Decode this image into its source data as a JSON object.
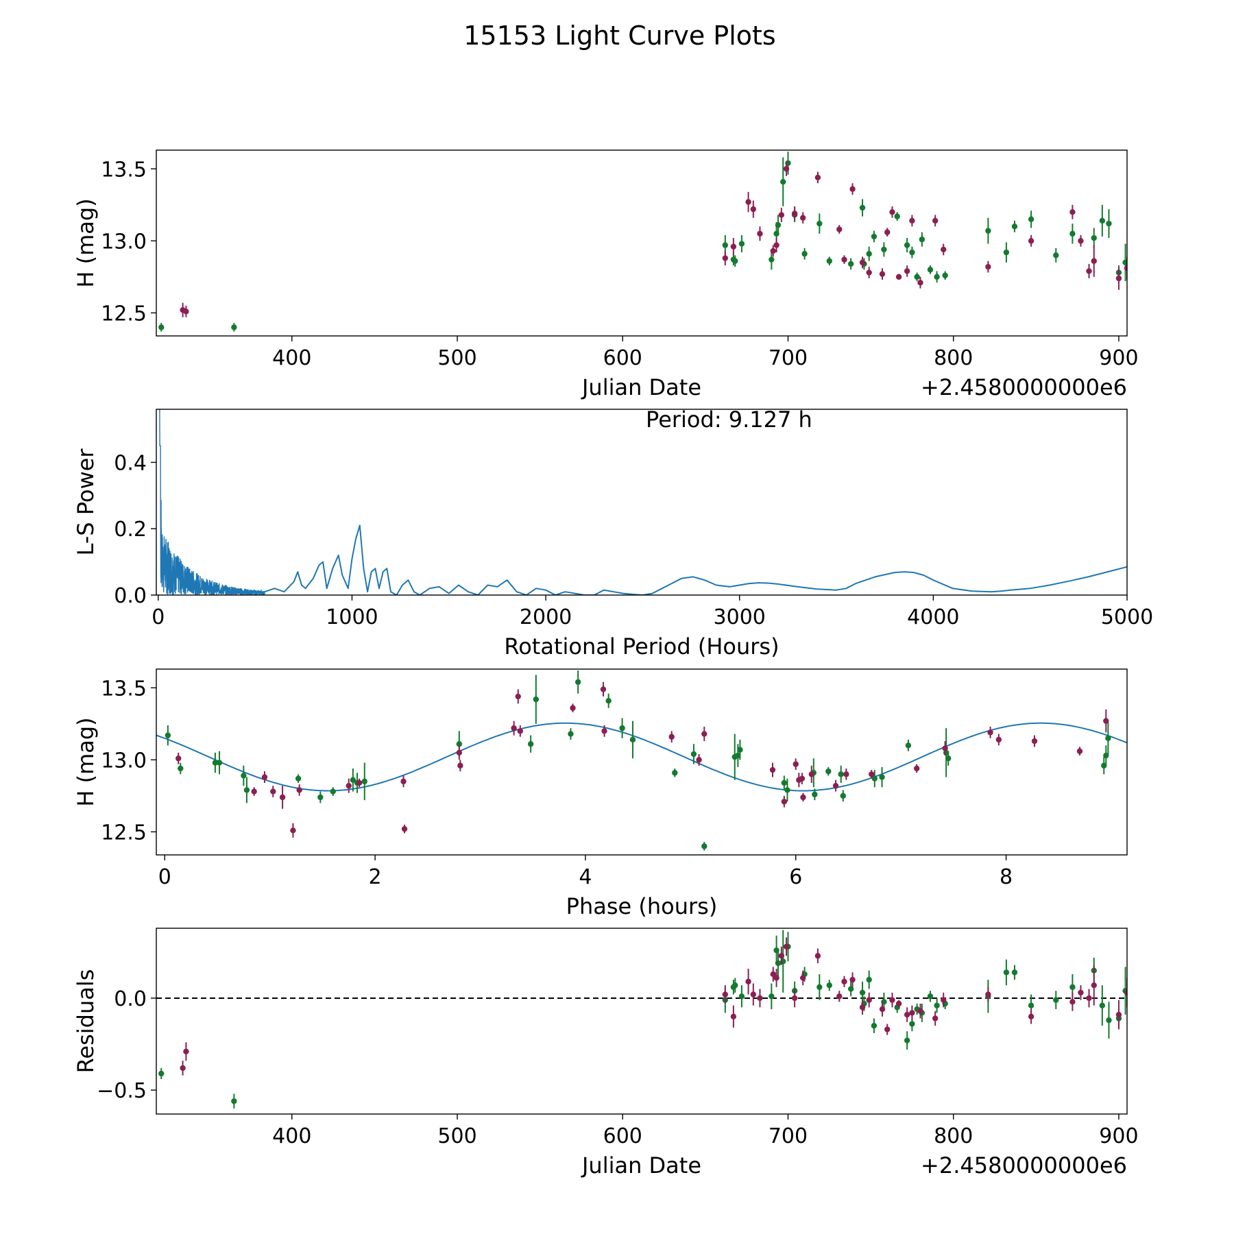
{
  "figure": {
    "title": "15153 Light Curve Plots"
  },
  "colors": {
    "green": "#137a2f",
    "purple": "#8b1f52",
    "line": "#1f77b4",
    "text": "#000000"
  },
  "chart_data": [
    {
      "id": "lightcurve",
      "type": "scatter",
      "title": "",
      "xlabel": "Julian Date",
      "ylabel": "H (mag)",
      "offset_label": "+2.4580000000e6",
      "xlim": [
        318,
        905
      ],
      "ylim": [
        12.34,
        13.63
      ],
      "xticks": [
        400,
        500,
        600,
        700,
        800,
        900
      ],
      "yticks": [
        12.5,
        13.0,
        13.5
      ],
      "ytick_labels": [
        "12.5",
        "13.0",
        "13.5"
      ],
      "series": [
        {
          "name": "green",
          "color": "#137a2f",
          "x": [
            321,
            365,
            662,
            667,
            668,
            672,
            690,
            693,
            694,
            697,
            700,
            704,
            710,
            719,
            725,
            738,
            745,
            746,
            749,
            752,
            758,
            766,
            772,
            775,
            778,
            781,
            786,
            790,
            795,
            821,
            832,
            837,
            847,
            862,
            872,
            885,
            890,
            894,
            900,
            904
          ],
          "y": [
            12.4,
            12.4,
            12.97,
            12.87,
            12.86,
            12.98,
            12.87,
            13.05,
            13.11,
            13.41,
            13.54,
            13.18,
            12.91,
            13.12,
            12.86,
            12.84,
            13.23,
            12.84,
            12.91,
            13.03,
            12.94,
            13.17,
            12.97,
            12.92,
            12.75,
            13.01,
            12.8,
            12.75,
            12.76,
            13.07,
            12.92,
            13.1,
            13.15,
            12.9,
            13.05,
            13.02,
            13.14,
            13.12,
            12.78,
            12.85
          ],
          "err": [
            0.03,
            0.03,
            0.07,
            0.04,
            0.04,
            0.06,
            0.07,
            0.08,
            0.07,
            0.17,
            0.08,
            0.05,
            0.04,
            0.07,
            0.03,
            0.04,
            0.06,
            0.04,
            0.05,
            0.04,
            0.05,
            0.03,
            0.05,
            0.04,
            0.03,
            0.05,
            0.03,
            0.04,
            0.03,
            0.09,
            0.07,
            0.04,
            0.06,
            0.05,
            0.07,
            0.07,
            0.11,
            0.1,
            0.05,
            0.13
          ]
        },
        {
          "name": "purple",
          "color": "#8b1f52",
          "x": [
            334,
            336,
            662,
            667,
            676,
            679,
            683,
            691,
            693,
            696,
            699,
            704,
            709,
            718,
            731,
            734,
            739,
            745,
            749,
            757,
            760,
            763,
            767,
            772,
            775,
            780,
            789,
            794,
            821,
            847,
            872,
            877,
            882,
            885,
            900,
            905
          ],
          "y": [
            12.52,
            12.51,
            12.88,
            12.96,
            13.27,
            13.22,
            13.05,
            12.93,
            12.97,
            13.18,
            13.5,
            13.19,
            13.16,
            13.44,
            13.08,
            12.87,
            13.36,
            12.85,
            12.78,
            12.77,
            13.06,
            13.2,
            12.75,
            12.79,
            13.14,
            12.71,
            13.14,
            12.94,
            12.82,
            13.0,
            13.2,
            13.0,
            12.79,
            12.86,
            12.74,
            12.81
          ],
          "err": [
            0.05,
            0.04,
            0.05,
            0.06,
            0.07,
            0.06,
            0.05,
            0.04,
            0.05,
            0.05,
            0.05,
            0.05,
            0.04,
            0.04,
            0.03,
            0.03,
            0.04,
            0.04,
            0.04,
            0.04,
            0.03,
            0.04,
            0.02,
            0.04,
            0.04,
            0.04,
            0.04,
            0.04,
            0.04,
            0.04,
            0.05,
            0.04,
            0.05,
            0.11,
            0.08,
            0.08
          ]
        }
      ]
    },
    {
      "id": "periodogram",
      "type": "line",
      "title": "",
      "annotation": "Period: 9.127 h",
      "xlabel": "Rotational Period (Hours)",
      "ylabel": "L-S Power",
      "xlim": [
        -10,
        5000
      ],
      "ylim": [
        0,
        0.56
      ],
      "xticks": [
        0,
        1000,
        2000,
        3000,
        4000,
        5000
      ],
      "yticks": [
        0.0,
        0.2,
        0.4
      ],
      "ytick_labels": [
        "0.0",
        "0.2",
        "0.4"
      ],
      "series": [
        {
          "name": "power",
          "color": "#1f77b4",
          "x": [
            550,
            600,
            650,
            700,
            720,
            740,
            760,
            800,
            830,
            850,
            870,
            900,
            930,
            950,
            980,
            1000,
            1020,
            1040,
            1060,
            1080,
            1100,
            1120,
            1140,
            1160,
            1180,
            1200,
            1230,
            1260,
            1290,
            1320,
            1350,
            1400,
            1450,
            1500,
            1550,
            1600,
            1650,
            1700,
            1750,
            1800,
            1850,
            1900,
            1950,
            2000,
            2050,
            2100,
            2150,
            2200,
            2250,
            2300,
            2350,
            2400,
            2450,
            2500,
            2550,
            2600,
            2650,
            2700,
            2760,
            2820,
            2880,
            2950,
            3000,
            3050,
            3100,
            3150,
            3200,
            3300,
            3400,
            3500,
            3550,
            3600,
            3700,
            3800,
            3850,
            3900,
            3950,
            4000,
            4100,
            4200,
            4300,
            4350,
            4400,
            4500,
            4600,
            4700,
            4800,
            4900,
            5000
          ],
          "y": [
            0.01,
            0.02,
            0.01,
            0.04,
            0.07,
            0.03,
            0.02,
            0.05,
            0.09,
            0.1,
            0.02,
            0.08,
            0.12,
            0.06,
            0.02,
            0.11,
            0.17,
            0.21,
            0.08,
            0.01,
            0.07,
            0.08,
            0.02,
            0.07,
            0.08,
            0.01,
            0.0,
            0.03,
            0.045,
            0.01,
            0.0,
            0.02,
            0.025,
            0.005,
            0.03,
            0.01,
            0.0,
            0.03,
            0.025,
            0.045,
            0.01,
            0.0,
            0.02,
            0.015,
            0.0,
            0.01,
            0.005,
            0.0,
            0.0,
            0.015,
            0.01,
            0.005,
            0.002,
            0.0,
            0.005,
            0.02,
            0.035,
            0.05,
            0.055,
            0.045,
            0.03,
            0.025,
            0.03,
            0.035,
            0.037,
            0.036,
            0.033,
            0.025,
            0.018,
            0.015,
            0.02,
            0.035,
            0.055,
            0.068,
            0.07,
            0.068,
            0.06,
            0.045,
            0.02,
            0.012,
            0.01,
            0.012,
            0.015,
            0.02,
            0.03,
            0.042,
            0.055,
            0.07,
            0.085
          ]
        }
      ]
    },
    {
      "id": "phase",
      "type": "scatter",
      "title": "",
      "xlabel": "Phase (hours)",
      "ylabel": "H (mag)",
      "xlim": [
        -0.08,
        9.15
      ],
      "ylim": [
        12.34,
        13.63
      ],
      "xticks": [
        0,
        2,
        4,
        6,
        8
      ],
      "yticks": [
        12.5,
        13.0,
        13.5
      ],
      "ytick_labels": [
        "12.5",
        "13.0",
        "13.5"
      ],
      "fit": {
        "mean": 13.02,
        "amplitude": 0.235,
        "period": 4.52,
        "phase_min": 1.55,
        "color": "#1f77b4"
      },
      "series": [
        {
          "name": "green",
          "color": "#137a2f",
          "x": [
            0.03,
            0.15,
            0.48,
            0.52,
            0.75,
            0.78,
            1.27,
            1.48,
            1.6,
            1.79,
            1.83,
            1.9,
            2.8,
            3.48,
            3.53,
            3.86,
            3.93,
            4.22,
            4.35,
            4.45,
            4.85,
            5.03,
            5.13,
            5.42,
            5.45,
            5.47,
            5.89,
            5.92,
            6.17,
            6.18,
            6.31,
            6.43,
            6.45,
            6.75,
            6.82,
            7.07,
            7.43,
            7.45,
            8.93,
            8.95,
            8.97
          ],
          "y": [
            13.17,
            12.94,
            12.98,
            12.98,
            12.89,
            12.79,
            12.87,
            12.74,
            12.78,
            12.86,
            12.84,
            12.85,
            13.11,
            13.11,
            13.42,
            13.18,
            13.54,
            13.41,
            13.22,
            13.14,
            12.91,
            13.04,
            12.4,
            13.02,
            13.03,
            13.07,
            12.84,
            12.79,
            12.91,
            12.76,
            12.92,
            12.9,
            12.75,
            12.87,
            12.88,
            13.1,
            13.05,
            13.01,
            12.96,
            13.03,
            13.15
          ],
          "err": [
            0.07,
            0.04,
            0.07,
            0.08,
            0.07,
            0.09,
            0.03,
            0.04,
            0.03,
            0.08,
            0.07,
            0.13,
            0.09,
            0.06,
            0.17,
            0.04,
            0.08,
            0.05,
            0.07,
            0.13,
            0.03,
            0.07,
            0.03,
            0.16,
            0.08,
            0.07,
            0.05,
            0.08,
            0.1,
            0.04,
            0.03,
            0.06,
            0.04,
            0.06,
            0.07,
            0.04,
            0.17,
            0.05,
            0.06,
            0.07,
            0.11
          ]
        },
        {
          "name": "purple",
          "color": "#8b1f52",
          "x": [
            0.13,
            0.85,
            0.95,
            1.03,
            1.12,
            1.22,
            1.28,
            1.75,
            1.85,
            2.27,
            2.28,
            2.8,
            2.81,
            3.32,
            3.36,
            3.38,
            3.88,
            4.17,
            4.18,
            4.82,
            5.08,
            5.13,
            5.78,
            5.89,
            6.0,
            6.03,
            6.06,
            6.07,
            6.15,
            6.38,
            6.48,
            6.72,
            7.15,
            7.42,
            7.85,
            7.93,
            8.27,
            8.7,
            8.95
          ],
          "y": [
            13.01,
            12.78,
            12.88,
            12.78,
            12.74,
            12.51,
            12.79,
            12.82,
            12.84,
            12.85,
            12.52,
            13.05,
            12.96,
            13.22,
            13.44,
            13.2,
            13.36,
            13.49,
            13.2,
            13.16,
            13.0,
            13.18,
            12.93,
            12.71,
            12.97,
            12.86,
            12.87,
            12.74,
            12.9,
            12.82,
            12.9,
            12.9,
            12.94,
            13.08,
            13.19,
            13.14,
            13.13,
            13.06,
            13.27
          ],
          "err": [
            0.04,
            0.03,
            0.04,
            0.04,
            0.08,
            0.05,
            0.04,
            0.05,
            0.03,
            0.04,
            0.03,
            0.05,
            0.04,
            0.05,
            0.05,
            0.04,
            0.03,
            0.05,
            0.04,
            0.04,
            0.04,
            0.05,
            0.05,
            0.04,
            0.04,
            0.05,
            0.04,
            0.03,
            0.06,
            0.04,
            0.04,
            0.03,
            0.03,
            0.05,
            0.04,
            0.04,
            0.04,
            0.03,
            0.08
          ]
        }
      ]
    },
    {
      "id": "residuals",
      "type": "scatter",
      "title": "",
      "xlabel": "Julian Date",
      "ylabel": "Residuals",
      "offset_label": "+2.4580000000e6",
      "xlim": [
        318,
        905
      ],
      "ylim": [
        -0.63,
        0.38
      ],
      "xticks": [
        400,
        500,
        600,
        700,
        800,
        900
      ],
      "yticks": [
        -0.5,
        0.0
      ],
      "ytick_labels": [
        "−0.5",
        "0.0"
      ],
      "zero_line": 0,
      "series": [
        {
          "name": "green",
          "color": "#137a2f",
          "x": [
            321,
            365,
            662,
            667,
            668,
            672,
            690,
            693,
            694,
            697,
            700,
            704,
            710,
            719,
            725,
            738,
            745,
            746,
            749,
            752,
            758,
            766,
            772,
            775,
            778,
            781,
            786,
            790,
            795,
            821,
            832,
            837,
            847,
            862,
            872,
            885,
            890,
            894,
            900,
            904
          ],
          "y": [
            -0.41,
            -0.56,
            -0.01,
            0.06,
            0.07,
            0.01,
            0.01,
            0.26,
            0.19,
            0.2,
            0.28,
            0.04,
            0.13,
            0.06,
            0.07,
            0.05,
            0.03,
            -0.03,
            0.1,
            -0.15,
            -0.02,
            -0.05,
            -0.23,
            -0.14,
            -0.06,
            -0.08,
            0.01,
            -0.04,
            -0.03,
            0.01,
            0.14,
            0.14,
            -0.04,
            -0.01,
            0.06,
            0.15,
            -0.04,
            -0.12,
            -0.11,
            0.04
          ],
          "err": [
            0.03,
            0.04,
            0.07,
            0.04,
            0.04,
            0.06,
            0.07,
            0.08,
            0.07,
            0.17,
            0.08,
            0.05,
            0.04,
            0.07,
            0.03,
            0.04,
            0.06,
            0.04,
            0.05,
            0.04,
            0.05,
            0.03,
            0.05,
            0.04,
            0.03,
            0.05,
            0.03,
            0.04,
            0.03,
            0.09,
            0.07,
            0.04,
            0.06,
            0.05,
            0.07,
            0.07,
            0.11,
            0.1,
            0.05,
            0.13
          ]
        },
        {
          "name": "purple",
          "color": "#8b1f52",
          "x": [
            334,
            336,
            662,
            667,
            676,
            679,
            683,
            691,
            693,
            696,
            699,
            704,
            709,
            718,
            731,
            734,
            739,
            745,
            749,
            757,
            760,
            763,
            767,
            772,
            775,
            780,
            789,
            794,
            821,
            847,
            872,
            877,
            882,
            885,
            900,
            905
          ],
          "y": [
            -0.38,
            -0.29,
            0.02,
            -0.1,
            0.09,
            0.02,
            0.0,
            0.13,
            0.11,
            0.23,
            0.28,
            0.0,
            0.11,
            0.23,
            0.01,
            0.09,
            0.1,
            -0.05,
            -0.01,
            -0.06,
            -0.17,
            -0.01,
            -0.03,
            -0.09,
            -0.08,
            -0.07,
            -0.11,
            -0.01,
            0.02,
            -0.1,
            -0.02,
            0.03,
            0.0,
            0.07,
            -0.09,
            0.03
          ],
          "err": [
            0.04,
            0.05,
            0.05,
            0.06,
            0.07,
            0.06,
            0.05,
            0.04,
            0.05,
            0.05,
            0.05,
            0.05,
            0.04,
            0.04,
            0.03,
            0.03,
            0.04,
            0.04,
            0.04,
            0.04,
            0.03,
            0.04,
            0.02,
            0.04,
            0.04,
            0.04,
            0.04,
            0.04,
            0.04,
            0.04,
            0.05,
            0.04,
            0.05,
            0.11,
            0.08,
            0.08
          ]
        }
      ]
    }
  ]
}
